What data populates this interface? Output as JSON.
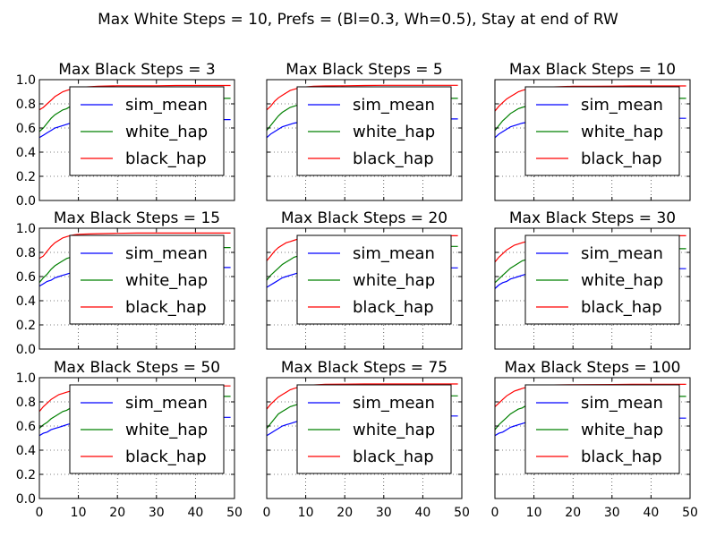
{
  "figure": {
    "title": "Max White Steps = 10, Prefs = (Bl=0.3, Wh=0.5), Stay at end of RW"
  },
  "colors": {
    "sim_mean": "#0000ff",
    "white_hap": "#008000",
    "black_hap": "#ff0000"
  },
  "chart_data": [
    {
      "type": "line",
      "title": "Max Black Steps = 3",
      "xlim": [
        0,
        50
      ],
      "ylim": [
        0.0,
        1.0
      ],
      "xticks": [
        "0",
        "10",
        "20",
        "30",
        "40",
        "50"
      ],
      "yticks": [
        "0.0",
        "0.2",
        "0.4",
        "0.6",
        "0.8",
        "1.0"
      ],
      "grid": true,
      "legend_position": "center-right",
      "x": [
        0,
        1,
        2,
        3,
        4,
        5,
        6,
        7,
        8,
        9,
        10,
        12,
        15,
        20,
        25,
        30,
        35,
        40,
        45,
        49
      ],
      "series": [
        {
          "name": "sim_mean",
          "values": [
            0.52,
            0.54,
            0.56,
            0.58,
            0.6,
            0.61,
            0.62,
            0.63,
            0.64,
            0.645,
            0.65,
            0.655,
            0.66,
            0.665,
            0.667,
            0.668,
            0.669,
            0.67,
            0.67,
            0.67
          ]
        },
        {
          "name": "white_hap",
          "values": [
            0.57,
            0.6,
            0.64,
            0.68,
            0.71,
            0.73,
            0.75,
            0.76,
            0.78,
            0.79,
            0.8,
            0.81,
            0.82,
            0.83,
            0.835,
            0.84,
            0.84,
            0.845,
            0.845,
            0.845
          ]
        },
        {
          "name": "black_hap",
          "values": [
            0.75,
            0.77,
            0.8,
            0.83,
            0.86,
            0.88,
            0.9,
            0.91,
            0.92,
            0.93,
            0.935,
            0.94,
            0.945,
            0.95,
            0.95,
            0.95,
            0.952,
            0.952,
            0.952,
            0.952
          ]
        }
      ]
    },
    {
      "type": "line",
      "title": "Max Black Steps = 5",
      "xlim": [
        0,
        50
      ],
      "ylim": [
        0.0,
        1.0
      ],
      "xticks": [
        "0",
        "10",
        "20",
        "30",
        "40",
        "50"
      ],
      "yticks": [
        "0.0",
        "0.2",
        "0.4",
        "0.6",
        "0.8",
        "1.0"
      ],
      "grid": true,
      "legend_position": "center-right",
      "x": [
        0,
        1,
        2,
        3,
        4,
        5,
        6,
        7,
        8,
        9,
        10,
        12,
        15,
        20,
        25,
        30,
        35,
        40,
        45,
        49
      ],
      "series": [
        {
          "name": "sim_mean",
          "values": [
            0.52,
            0.55,
            0.57,
            0.59,
            0.61,
            0.62,
            0.63,
            0.64,
            0.645,
            0.65,
            0.655,
            0.66,
            0.665,
            0.67,
            0.672,
            0.673,
            0.674,
            0.675,
            0.675,
            0.675
          ]
        },
        {
          "name": "white_hap",
          "values": [
            0.58,
            0.62,
            0.66,
            0.7,
            0.73,
            0.75,
            0.77,
            0.78,
            0.79,
            0.8,
            0.81,
            0.82,
            0.83,
            0.835,
            0.84,
            0.842,
            0.845,
            0.845,
            0.845,
            0.845
          ]
        },
        {
          "name": "black_hap",
          "values": [
            0.75,
            0.78,
            0.82,
            0.85,
            0.87,
            0.89,
            0.91,
            0.92,
            0.93,
            0.935,
            0.94,
            0.945,
            0.948,
            0.95,
            0.952,
            0.953,
            0.953,
            0.953,
            0.953,
            0.953
          ]
        }
      ]
    },
    {
      "type": "line",
      "title": "Max Black Steps = 10",
      "xlim": [
        0,
        50
      ],
      "ylim": [
        0.0,
        1.0
      ],
      "xticks": [
        "0",
        "10",
        "20",
        "30",
        "40",
        "50"
      ],
      "yticks": [
        "0.0",
        "0.2",
        "0.4",
        "0.6",
        "0.8",
        "1.0"
      ],
      "grid": true,
      "legend_position": "center-right",
      "x": [
        0,
        1,
        2,
        3,
        4,
        5,
        6,
        7,
        8,
        9,
        10,
        12,
        15,
        20,
        25,
        30,
        35,
        40,
        45,
        49
      ],
      "series": [
        {
          "name": "sim_mean",
          "values": [
            0.52,
            0.55,
            0.57,
            0.59,
            0.61,
            0.62,
            0.63,
            0.64,
            0.645,
            0.65,
            0.655,
            0.66,
            0.665,
            0.67,
            0.675,
            0.677,
            0.678,
            0.68,
            0.68,
            0.68
          ]
        },
        {
          "name": "white_hap",
          "values": [
            0.58,
            0.62,
            0.66,
            0.69,
            0.72,
            0.74,
            0.76,
            0.77,
            0.78,
            0.79,
            0.8,
            0.81,
            0.82,
            0.83,
            0.835,
            0.84,
            0.84,
            0.845,
            0.845,
            0.845
          ]
        },
        {
          "name": "black_hap",
          "values": [
            0.74,
            0.78,
            0.81,
            0.84,
            0.86,
            0.88,
            0.9,
            0.91,
            0.92,
            0.925,
            0.93,
            0.935,
            0.94,
            0.945,
            0.945,
            0.947,
            0.948,
            0.948,
            0.948,
            0.948
          ]
        }
      ]
    },
    {
      "type": "line",
      "title": "Max Black Steps = 15",
      "xlim": [
        0,
        50
      ],
      "ylim": [
        0.0,
        1.0
      ],
      "xticks": [
        "0",
        "10",
        "20",
        "30",
        "40",
        "50"
      ],
      "yticks": [
        "0.0",
        "0.2",
        "0.4",
        "0.6",
        "0.8",
        "1.0"
      ],
      "grid": true,
      "legend_position": "center-right",
      "x": [
        0,
        1,
        2,
        3,
        4,
        5,
        6,
        7,
        8,
        9,
        10,
        12,
        15,
        20,
        25,
        30,
        35,
        40,
        45,
        49
      ],
      "series": [
        {
          "name": "sim_mean",
          "values": [
            0.52,
            0.54,
            0.56,
            0.57,
            0.59,
            0.6,
            0.61,
            0.62,
            0.63,
            0.64,
            0.645,
            0.65,
            0.66,
            0.665,
            0.67,
            0.672,
            0.674,
            0.675,
            0.675,
            0.675
          ]
        },
        {
          "name": "white_hap",
          "values": [
            0.55,
            0.59,
            0.62,
            0.66,
            0.69,
            0.71,
            0.73,
            0.75,
            0.76,
            0.77,
            0.78,
            0.8,
            0.81,
            0.82,
            0.83,
            0.835,
            0.84,
            0.84,
            0.84,
            0.84
          ]
        },
        {
          "name": "black_hap",
          "values": [
            0.75,
            0.77,
            0.81,
            0.85,
            0.88,
            0.9,
            0.92,
            0.93,
            0.94,
            0.945,
            0.95,
            0.952,
            0.955,
            0.958,
            0.96,
            0.96,
            0.96,
            0.96,
            0.96,
            0.96
          ]
        }
      ]
    },
    {
      "type": "line",
      "title": "Max Black Steps = 20",
      "xlim": [
        0,
        50
      ],
      "ylim": [
        0.0,
        1.0
      ],
      "xticks": [
        "0",
        "10",
        "20",
        "30",
        "40",
        "50"
      ],
      "yticks": [
        "0.0",
        "0.2",
        "0.4",
        "0.6",
        "0.8",
        "1.0"
      ],
      "grid": true,
      "legend_position": "center-right",
      "x": [
        0,
        1,
        2,
        3,
        4,
        5,
        6,
        7,
        8,
        9,
        10,
        12,
        15,
        20,
        25,
        30,
        35,
        40,
        45,
        49
      ],
      "series": [
        {
          "name": "sim_mean",
          "values": [
            0.51,
            0.53,
            0.55,
            0.57,
            0.59,
            0.6,
            0.61,
            0.62,
            0.63,
            0.64,
            0.645,
            0.65,
            0.655,
            0.66,
            0.665,
            0.668,
            0.67,
            0.672,
            0.672,
            0.672
          ]
        },
        {
          "name": "white_hap",
          "values": [
            0.57,
            0.61,
            0.64,
            0.67,
            0.7,
            0.72,
            0.74,
            0.76,
            0.77,
            0.78,
            0.79,
            0.8,
            0.81,
            0.82,
            0.83,
            0.835,
            0.84,
            0.845,
            0.85,
            0.85
          ]
        },
        {
          "name": "black_hap",
          "values": [
            0.73,
            0.77,
            0.81,
            0.84,
            0.86,
            0.88,
            0.89,
            0.9,
            0.91,
            0.92,
            0.925,
            0.93,
            0.935,
            0.937,
            0.938,
            0.938,
            0.938,
            0.938,
            0.938,
            0.938
          ]
        }
      ]
    },
    {
      "type": "line",
      "title": "Max Black Steps = 30",
      "xlim": [
        0,
        50
      ],
      "ylim": [
        0.0,
        1.0
      ],
      "xticks": [
        "0",
        "10",
        "20",
        "30",
        "40",
        "50"
      ],
      "yticks": [
        "0.0",
        "0.2",
        "0.4",
        "0.6",
        "0.8",
        "1.0"
      ],
      "grid": true,
      "legend_position": "center-right",
      "x": [
        0,
        1,
        2,
        3,
        4,
        5,
        6,
        7,
        8,
        9,
        10,
        12,
        15,
        20,
        25,
        30,
        35,
        40,
        45,
        49
      ],
      "series": [
        {
          "name": "sim_mean",
          "values": [
            0.5,
            0.53,
            0.55,
            0.56,
            0.58,
            0.59,
            0.6,
            0.61,
            0.62,
            0.63,
            0.635,
            0.64,
            0.65,
            0.655,
            0.66,
            0.662,
            0.664,
            0.665,
            0.665,
            0.665
          ]
        },
        {
          "name": "white_hap",
          "values": [
            0.55,
            0.58,
            0.61,
            0.64,
            0.67,
            0.69,
            0.71,
            0.73,
            0.74,
            0.75,
            0.76,
            0.78,
            0.79,
            0.8,
            0.81,
            0.82,
            0.825,
            0.83,
            0.83,
            0.83
          ]
        },
        {
          "name": "black_hap",
          "values": [
            0.72,
            0.76,
            0.79,
            0.82,
            0.84,
            0.86,
            0.87,
            0.88,
            0.89,
            0.9,
            0.905,
            0.91,
            0.92,
            0.925,
            0.93,
            0.932,
            0.935,
            0.937,
            0.938,
            0.938
          ]
        }
      ]
    },
    {
      "type": "line",
      "title": "Max Black Steps = 50",
      "xlim": [
        0,
        50
      ],
      "ylim": [
        0.0,
        1.0
      ],
      "xticks": [
        "0",
        "10",
        "20",
        "30",
        "40",
        "50"
      ],
      "yticks": [
        "0.0",
        "0.2",
        "0.4",
        "0.6",
        "0.8",
        "1.0"
      ],
      "grid": true,
      "legend_position": "center-right",
      "x": [
        0,
        1,
        2,
        3,
        4,
        5,
        6,
        7,
        8,
        9,
        10,
        12,
        15,
        20,
        25,
        30,
        35,
        40,
        45,
        49
      ],
      "series": [
        {
          "name": "sim_mean",
          "values": [
            0.52,
            0.54,
            0.55,
            0.57,
            0.58,
            0.59,
            0.6,
            0.61,
            0.62,
            0.63,
            0.635,
            0.64,
            0.65,
            0.655,
            0.66,
            0.665,
            0.668,
            0.67,
            0.672,
            0.672
          ]
        },
        {
          "name": "white_hap",
          "values": [
            0.58,
            0.61,
            0.63,
            0.66,
            0.68,
            0.7,
            0.72,
            0.73,
            0.75,
            0.76,
            0.77,
            0.78,
            0.8,
            0.81,
            0.82,
            0.83,
            0.835,
            0.84,
            0.845,
            0.845
          ]
        },
        {
          "name": "black_hap",
          "values": [
            0.72,
            0.76,
            0.79,
            0.82,
            0.84,
            0.86,
            0.87,
            0.88,
            0.89,
            0.9,
            0.91,
            0.915,
            0.92,
            0.925,
            0.93,
            0.93,
            0.932,
            0.932,
            0.932,
            0.932
          ]
        }
      ]
    },
    {
      "type": "line",
      "title": "Max Black Steps = 75",
      "xlim": [
        0,
        50
      ],
      "ylim": [
        0.0,
        1.0
      ],
      "xticks": [
        "0",
        "10",
        "20",
        "30",
        "40",
        "50"
      ],
      "yticks": [
        "0.0",
        "0.2",
        "0.4",
        "0.6",
        "0.8",
        "1.0"
      ],
      "grid": true,
      "legend_position": "center-right",
      "x": [
        0,
        1,
        2,
        3,
        4,
        5,
        6,
        7,
        8,
        9,
        10,
        12,
        15,
        20,
        25,
        30,
        35,
        40,
        45,
        49
      ],
      "series": [
        {
          "name": "sim_mean",
          "values": [
            0.52,
            0.54,
            0.56,
            0.58,
            0.6,
            0.61,
            0.62,
            0.63,
            0.64,
            0.645,
            0.65,
            0.66,
            0.665,
            0.67,
            0.675,
            0.678,
            0.68,
            0.682,
            0.683,
            0.683
          ]
        },
        {
          "name": "white_hap",
          "values": [
            0.58,
            0.62,
            0.66,
            0.7,
            0.72,
            0.74,
            0.76,
            0.77,
            0.78,
            0.79,
            0.8,
            0.81,
            0.82,
            0.83,
            0.835,
            0.84,
            0.845,
            0.845,
            0.85,
            0.85
          ]
        },
        {
          "name": "black_hap",
          "values": [
            0.74,
            0.78,
            0.81,
            0.84,
            0.86,
            0.88,
            0.9,
            0.91,
            0.92,
            0.93,
            0.935,
            0.94,
            0.945,
            0.947,
            0.948,
            0.948,
            0.948,
            0.948,
            0.948,
            0.948
          ]
        }
      ]
    },
    {
      "type": "line",
      "title": "Max Black Steps = 100",
      "xlim": [
        0,
        50
      ],
      "ylim": [
        0.0,
        1.0
      ],
      "xticks": [
        "0",
        "10",
        "20",
        "30",
        "40",
        "50"
      ],
      "yticks": [
        "0.0",
        "0.2",
        "0.4",
        "0.6",
        "0.8",
        "1.0"
      ],
      "grid": true,
      "legend_position": "center-right",
      "x": [
        0,
        1,
        2,
        3,
        4,
        5,
        6,
        7,
        8,
        9,
        10,
        12,
        15,
        20,
        25,
        30,
        35,
        40,
        45,
        49
      ],
      "series": [
        {
          "name": "sim_mean",
          "values": [
            0.52,
            0.54,
            0.55,
            0.57,
            0.59,
            0.6,
            0.61,
            0.62,
            0.63,
            0.635,
            0.64,
            0.645,
            0.65,
            0.655,
            0.66,
            0.662,
            0.664,
            0.665,
            0.665,
            0.665
          ]
        },
        {
          "name": "white_hap",
          "values": [
            0.57,
            0.61,
            0.64,
            0.67,
            0.7,
            0.72,
            0.74,
            0.75,
            0.77,
            0.78,
            0.79,
            0.8,
            0.81,
            0.82,
            0.83,
            0.835,
            0.84,
            0.84,
            0.845,
            0.845
          ]
        },
        {
          "name": "black_hap",
          "values": [
            0.76,
            0.79,
            0.82,
            0.85,
            0.87,
            0.89,
            0.9,
            0.91,
            0.92,
            0.925,
            0.93,
            0.935,
            0.94,
            0.942,
            0.943,
            0.944,
            0.945,
            0.945,
            0.945,
            0.945
          ]
        }
      ]
    }
  ]
}
